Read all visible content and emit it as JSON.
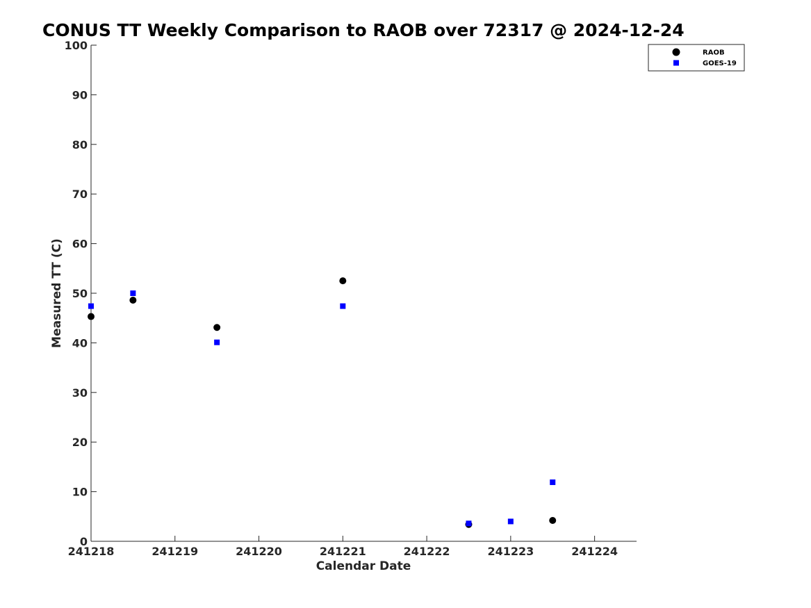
{
  "chart_data": {
    "type": "scatter",
    "title": "CONUS TT Weekly Comparison to RAOB over 72317 @ 2024-12-24",
    "xlabel": "Calendar Date",
    "ylabel": "Measured TT (C)",
    "xlim": [
      241218,
      241224.5
    ],
    "ylim": [
      0,
      100
    ],
    "x_ticks": [
      241218,
      241219,
      241220,
      241221,
      241222,
      241223,
      241224
    ],
    "x_tick_labels": [
      "241218",
      "241219",
      "241220",
      "241221",
      "241222",
      "241223",
      "241224"
    ],
    "y_ticks": [
      0,
      10,
      20,
      30,
      40,
      50,
      60,
      70,
      80,
      90,
      100
    ],
    "y_tick_labels": [
      "0",
      "10",
      "20",
      "30",
      "40",
      "50",
      "60",
      "70",
      "80",
      "90",
      "100"
    ],
    "grid": false,
    "legend_position": "top-right",
    "series": [
      {
        "name": "RAOB",
        "marker": "circle",
        "color": "#000000",
        "points": [
          {
            "x": 241218.0,
            "y": 45.3
          },
          {
            "x": 241218.5,
            "y": 48.6
          },
          {
            "x": 241219.5,
            "y": 43.1
          },
          {
            "x": 241221.0,
            "y": 52.5
          },
          {
            "x": 241222.5,
            "y": 3.4
          },
          {
            "x": 241223.5,
            "y": 4.2
          }
        ]
      },
      {
        "name": "GOES-19",
        "marker": "square",
        "color": "#0000ff",
        "points": [
          {
            "x": 241218.0,
            "y": 47.4
          },
          {
            "x": 241218.5,
            "y": 50.0
          },
          {
            "x": 241219.5,
            "y": 40.1
          },
          {
            "x": 241221.0,
            "y": 47.4
          },
          {
            "x": 241222.5,
            "y": 3.6
          },
          {
            "x": 241223.0,
            "y": 4.0
          },
          {
            "x": 241223.5,
            "y": 11.9
          }
        ]
      }
    ]
  }
}
